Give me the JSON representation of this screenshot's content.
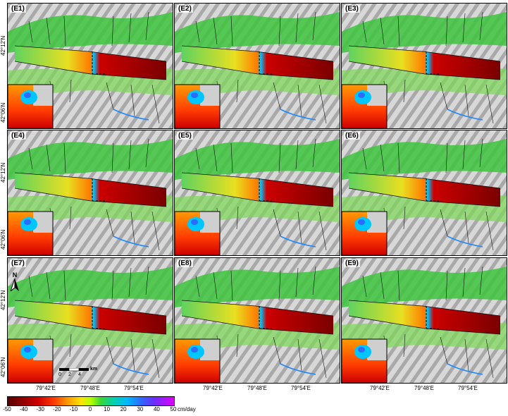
{
  "panels": [
    {
      "id": "E1",
      "label": "(E1)"
    },
    {
      "id": "E2",
      "label": "(E2)"
    },
    {
      "id": "E3",
      "label": "(E3)"
    },
    {
      "id": "E4",
      "label": "(E4)"
    },
    {
      "id": "E5",
      "label": "(E5)"
    },
    {
      "id": "E6",
      "label": "(E6)"
    },
    {
      "id": "E7",
      "label": "(E7)"
    },
    {
      "id": "E8",
      "label": "(E8)"
    },
    {
      "id": "E9",
      "label": "(E9)"
    }
  ],
  "latitude_labels": {
    "lat_top": "42°12'N",
    "lat_bottom": "42°06'N"
  },
  "longitude_labels": [
    "79°42'E",
    "79°48'E",
    "79°54'E"
  ],
  "north_arrow": {
    "letter": "N",
    "icon": "north-arrow-icon"
  },
  "scale_bar": {
    "labels": [
      "0",
      "2",
      "4"
    ],
    "unit": "km"
  },
  "colorbar": {
    "ticks": [
      "-50",
      "-40",
      "-30",
      "-20",
      "-10",
      "0",
      "10",
      "20",
      "30",
      "40",
      "50"
    ],
    "unit": "cm/day",
    "colors": {
      "min": "#5a0000",
      "mid": "#39d639",
      "max": "#e000ff"
    }
  }
}
